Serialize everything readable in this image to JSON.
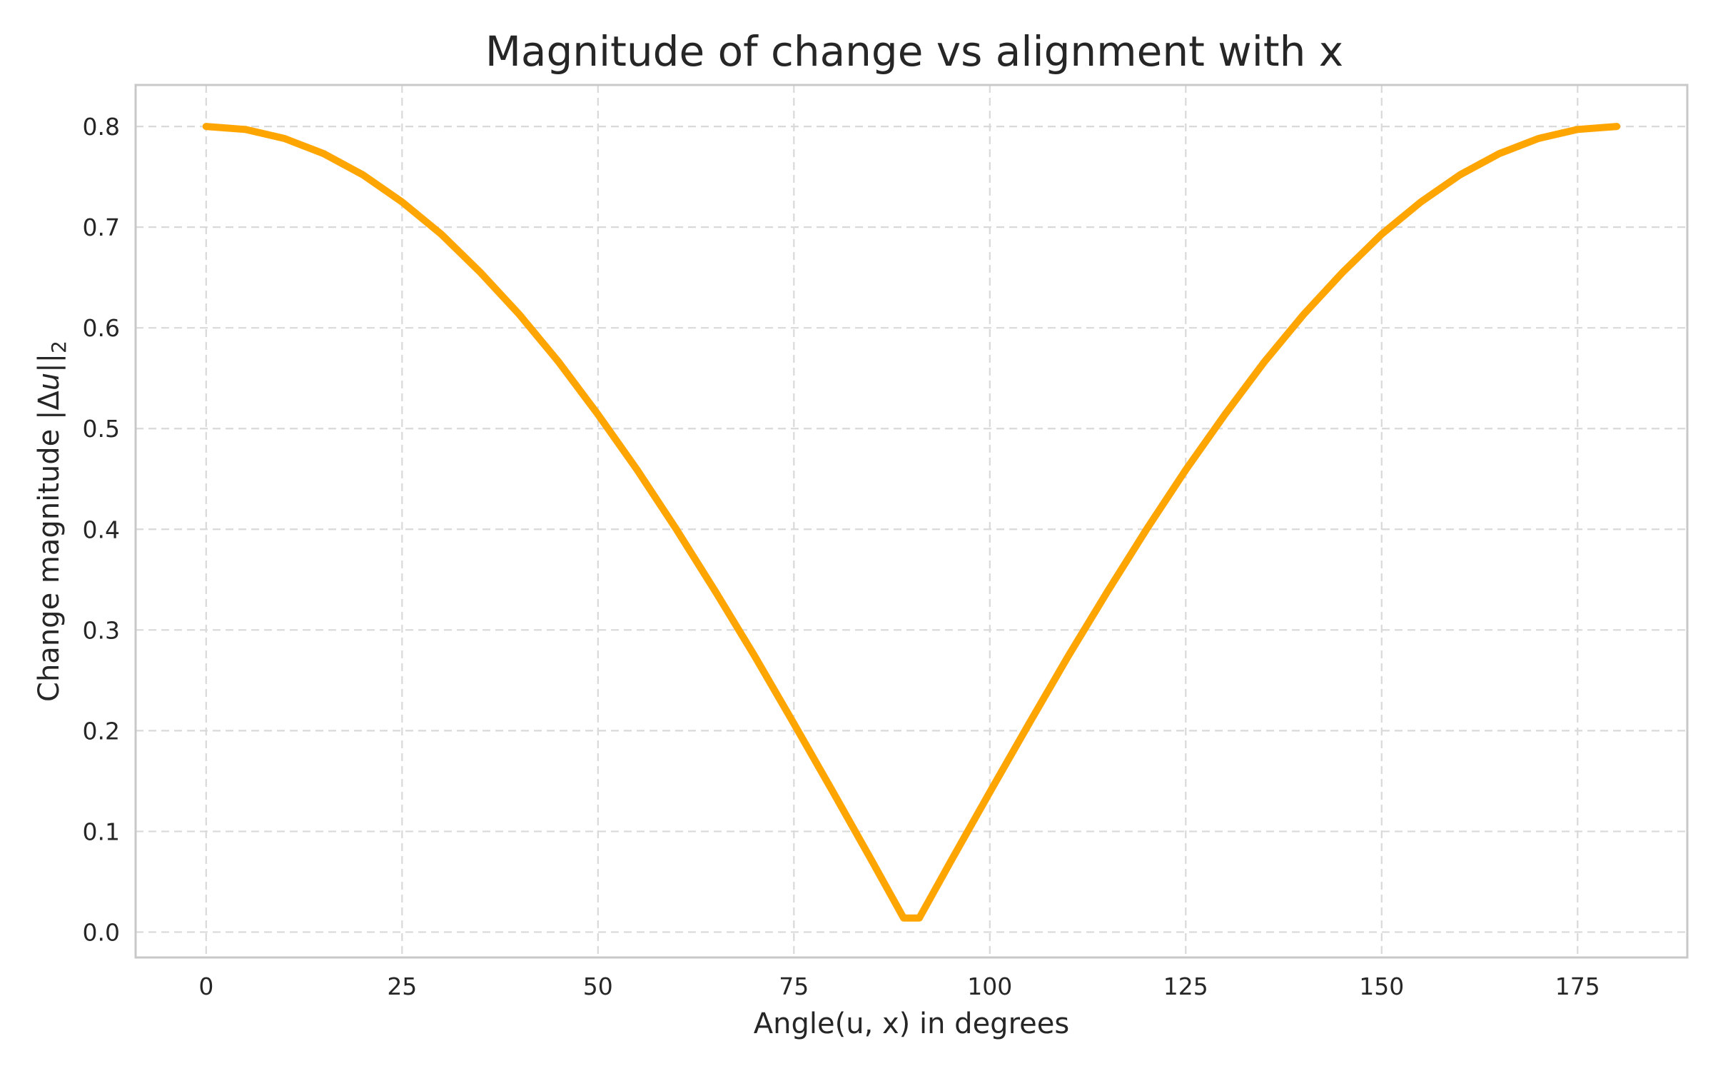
{
  "chart_data": {
    "type": "line",
    "title": "Magnitude of change vs alignment with x",
    "xlabel": "Angle(u, x) in degrees",
    "ylabel": {
      "prefix": "Change magnitude |",
      "delta": "Δ",
      "var": "u",
      "bars": "||",
      "sub": "2"
    },
    "xlim": [
      -9,
      189
    ],
    "ylim": [
      -0.0252,
      0.8412
    ],
    "xticks": [
      0,
      25,
      50,
      75,
      100,
      125,
      150,
      175
    ],
    "xtick_labels": [
      "0",
      "25",
      "50",
      "75",
      "100",
      "125",
      "150",
      "175"
    ],
    "yticks": [
      0.0,
      0.1,
      0.2,
      0.3,
      0.4,
      0.5,
      0.6,
      0.7,
      0.8
    ],
    "ytick_labels": [
      "0.0",
      "0.1",
      "0.2",
      "0.3",
      "0.4",
      "0.5",
      "0.6",
      "0.7",
      "0.8"
    ],
    "grid": true,
    "series": [
      {
        "color": "#FFA500",
        "x": [
          0,
          5,
          10,
          15,
          20,
          25,
          30,
          35,
          40,
          45,
          50,
          55,
          60,
          65,
          70,
          75,
          80,
          85,
          89,
          91,
          95,
          100,
          105,
          110,
          115,
          120,
          125,
          130,
          135,
          140,
          145,
          150,
          155,
          160,
          165,
          170,
          175,
          180
        ],
        "y": [
          0.8,
          0.797,
          0.788,
          0.773,
          0.752,
          0.725,
          0.693,
          0.655,
          0.613,
          0.566,
          0.514,
          0.459,
          0.4,
          0.338,
          0.274,
          0.207,
          0.139,
          0.07,
          0.014,
          0.014,
          0.07,
          0.139,
          0.207,
          0.274,
          0.338,
          0.4,
          0.459,
          0.514,
          0.566,
          0.613,
          0.655,
          0.693,
          0.725,
          0.752,
          0.773,
          0.788,
          0.797,
          0.8
        ]
      }
    ]
  }
}
